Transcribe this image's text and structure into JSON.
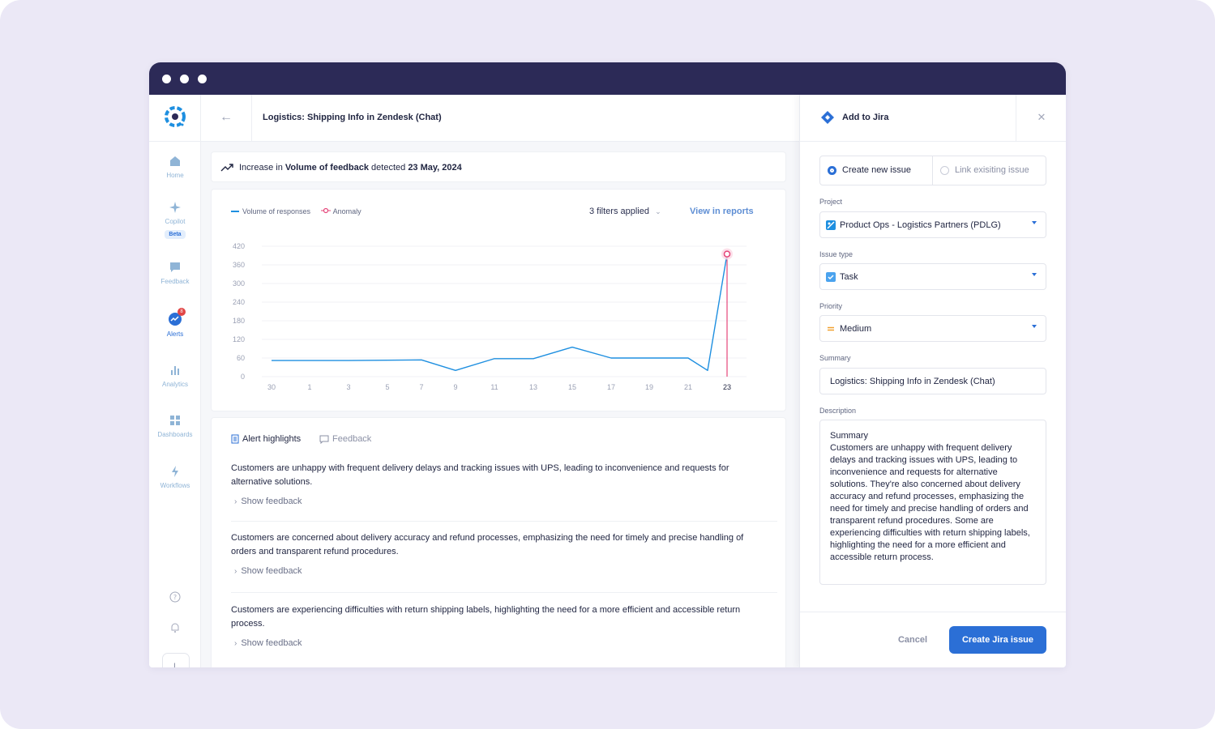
{
  "main": {
    "page_title": "Logistics: Shipping Info in Zendesk (Chat)",
    "alert": {
      "prefix": "Increase in ",
      "metric": "Volume of feedback",
      "middle": " detected ",
      "date": "23 May, 2024"
    },
    "filters_label": "3 filters applied",
    "view_reports_label": "View in reports",
    "tabs": [
      {
        "label": "Alert highlights"
      },
      {
        "label": "Feedback"
      }
    ],
    "highlights": [
      {
        "text": "Customers are unhappy with frequent delivery delays and tracking issues with UPS, leading to inconvenience and requests for alternative solutions.",
        "show_label": "Show feedback"
      },
      {
        "text": "Customers are concerned about delivery accuracy and refund processes, emphasizing the need for timely and precise handling of orders and transparent refund procedures.",
        "show_label": "Show feedback"
      },
      {
        "text": "Customers are experiencing difficulties with return shipping labels, highlighting the need for a more efficient and accessible return process.",
        "show_label": "Show feedback"
      }
    ]
  },
  "nav": {
    "items": [
      {
        "label": "Home"
      },
      {
        "label": "Copilot",
        "tag": "Beta"
      },
      {
        "label": "Feedback"
      },
      {
        "label": "Alerts",
        "badge": "8"
      },
      {
        "label": "Analytics"
      },
      {
        "label": "Dashboards"
      },
      {
        "label": "Workflows"
      }
    ],
    "avatar_initial": "L"
  },
  "chart_data": {
    "type": "line",
    "title": "",
    "legend": [
      "Volume of responses",
      "Anomaly"
    ],
    "x_ticks": [
      "30",
      "1",
      "3",
      "5",
      "7",
      "9",
      "11",
      "13",
      "15",
      "17",
      "19",
      "21",
      "23"
    ],
    "y_ticks": [
      "420",
      "360",
      "300",
      "240",
      "180",
      "120",
      "60",
      "0"
    ],
    "ylim": [
      0,
      420
    ],
    "series": [
      {
        "name": "Volume of responses",
        "x": [
          30,
          1,
          3,
          5,
          7,
          9,
          11,
          13,
          15,
          17,
          19,
          21,
          22,
          23
        ],
        "values": [
          52,
          52,
          52,
          53,
          54,
          20,
          58,
          58,
          95,
          60,
          60,
          60,
          20,
          395
        ]
      }
    ],
    "anomaly": {
      "x": 23,
      "value": 395
    }
  },
  "jira": {
    "title": "Add to Jira",
    "mode_options": [
      {
        "label": "Create new issue"
      },
      {
        "label": "Link exisiting issue"
      }
    ],
    "project_label": "Project",
    "project_value": "Product Ops - Logistics Partners (PDLG)",
    "issue_type_label": "Issue type",
    "issue_type_value": "Task",
    "priority_label": "Priority",
    "priority_value": "Medium",
    "summary_label": "Summary",
    "summary_value": "Logistics: Shipping Info in Zendesk (Chat)",
    "description_label": "Description",
    "description_heading": "Summary",
    "description_body": "Customers are unhappy with frequent delivery delays and tracking issues with UPS, leading to inconvenience and requests for alternative solutions. They're also concerned about delivery accuracy and refund processes, emphasizing the need for timely and precise handling of orders and transparent refund procedures. Some are experiencing difficulties with return shipping labels, highlighting the need for a more efficient and accessible return process.",
    "cancel_label": "Cancel",
    "create_label": "Create Jira issue"
  },
  "colors": {
    "accent": "#2b6fd6",
    "line": "#1e8fe0",
    "anomaly": "#e5467a",
    "titlebar": "#2c2a57"
  }
}
